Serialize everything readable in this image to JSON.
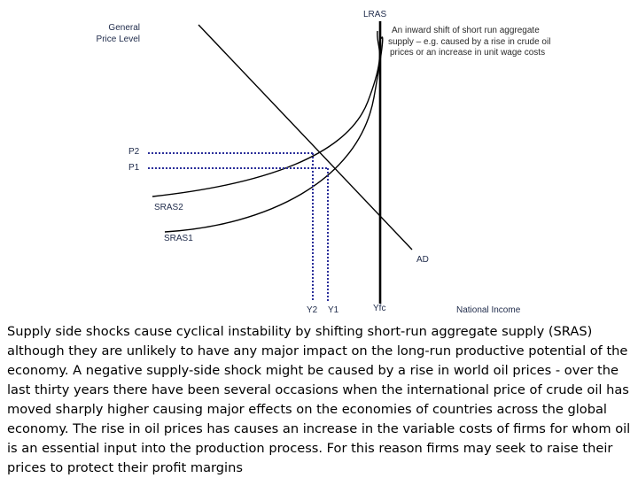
{
  "diagram": {
    "y_axis_label_line1": "General",
    "y_axis_label_line2": "Price Level",
    "x_axis_label": "National Income",
    "lras_label": "LRAS",
    "ad_label": "AD",
    "sras1_label": "SRAS1",
    "sras2_label": "SRAS2",
    "p1_label": "P1",
    "p2_label": "P2",
    "y1_label": "Y1",
    "y2_label": "Y2",
    "yfc_label": "Yfc",
    "annotation_line1": "An inward shift of short run aggregate",
    "annotation_line2": "supply – e.g. caused by a rise in crude oil",
    "annotation_line3": "prices or an increase in unit wage costs"
  },
  "caption": "Supply side shocks cause cyclical instability by shifting short-run aggregate supply (SRAS) although they are unlikely to have any major impact on the long-run productive potential of the economy. A negative supply-side shock might be caused by a rise in world oil prices - over the last thirty years there have been several occasions when the international price of crude oil has moved sharply higher causing major effects on the economies of countries across the global economy. The rise in oil prices has causes an increase in the variable costs of firms for whom oil is an essential input into the production process. For this reason firms may seek to raise their prices to protect their profit margins"
}
